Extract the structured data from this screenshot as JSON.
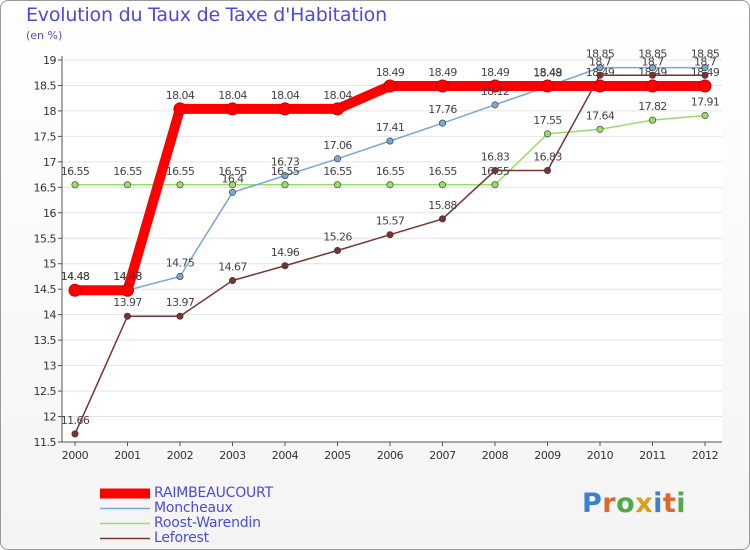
{
  "header": {
    "title": "Evolution du Taux de Taxe d'Habitation",
    "unit": "(en %)"
  },
  "brand": {
    "text": "Proxiti",
    "letter_colors": [
      "#3a7fd0",
      "#e0662a",
      "#52a84a",
      "#d8a020",
      "#3a7fd0",
      "#e0662a",
      "#52a84a"
    ]
  },
  "chart_data": {
    "type": "line",
    "title": "Evolution du Taux de Taxe d'Habitation",
    "ylabel": "(en %)",
    "x": [
      "2000",
      "2001",
      "2002",
      "2003",
      "2004",
      "2005",
      "2006",
      "2007",
      "2008",
      "2009",
      "2010",
      "2011",
      "2012"
    ],
    "ylim": [
      11.5,
      19
    ],
    "yticks": [
      "11.5",
      "12",
      "12.5",
      "13",
      "13.5",
      "14",
      "14.5",
      "15",
      "15.5",
      "16",
      "16.5",
      "17",
      "17.5",
      "18",
      "18.5",
      "19"
    ],
    "grid": "horizontal",
    "legend_placement": "bottom-left",
    "series": [
      {
        "name": "RAIMBEAUCOURT",
        "color": "#ff0000",
        "values": [
          14.48,
          14.48,
          18.04,
          18.04,
          18.04,
          18.04,
          18.49,
          18.49,
          18.49,
          18.49,
          18.49,
          18.49,
          18.49
        ],
        "labels": [
          "14.48",
          "14.48",
          "18.04",
          "18.04",
          "18.04",
          "18.04",
          "18.49",
          "18.49",
          "18.49",
          "18.49",
          "18.49",
          "18.49",
          "18.49"
        ]
      },
      {
        "name": "Moncheaux",
        "color": "#7aa7d4",
        "values": [
          14.48,
          14.48,
          14.75,
          16.4,
          16.73,
          17.06,
          17.41,
          17.76,
          18.12,
          18.48,
          18.85,
          18.85,
          18.85
        ],
        "labels": [
          "14.48",
          "14.48",
          "14.75",
          "16.4",
          "16.73",
          "17.06",
          "17.41",
          "17.76",
          "18.12",
          "18.48",
          "18.85",
          "18.85",
          "18.85"
        ]
      },
      {
        "name": "Roost-Warendin",
        "color": "#99dd66",
        "values": [
          16.55,
          16.55,
          16.55,
          16.55,
          16.55,
          16.55,
          16.55,
          16.55,
          16.55,
          17.55,
          17.64,
          17.82,
          17.91
        ],
        "labels": [
          "16.55",
          "16.55",
          "16.55",
          "16.55",
          "16.55",
          "16.55",
          "16.55",
          "16.55",
          "16.55",
          "17.55",
          "17.64",
          "17.82",
          "17.91"
        ]
      },
      {
        "name": "Leforest",
        "color": "#7a3333",
        "values": [
          11.66,
          13.97,
          13.97,
          14.67,
          14.96,
          15.26,
          15.57,
          15.88,
          16.83,
          16.83,
          18.7,
          18.7,
          18.7
        ],
        "labels": [
          "11.66",
          "13.97",
          "13.97",
          "14.67",
          "14.96",
          "15.26",
          "15.57",
          "15.88",
          "16.83",
          "16.83",
          "18.7",
          "18.7",
          "18.7"
        ]
      }
    ]
  }
}
